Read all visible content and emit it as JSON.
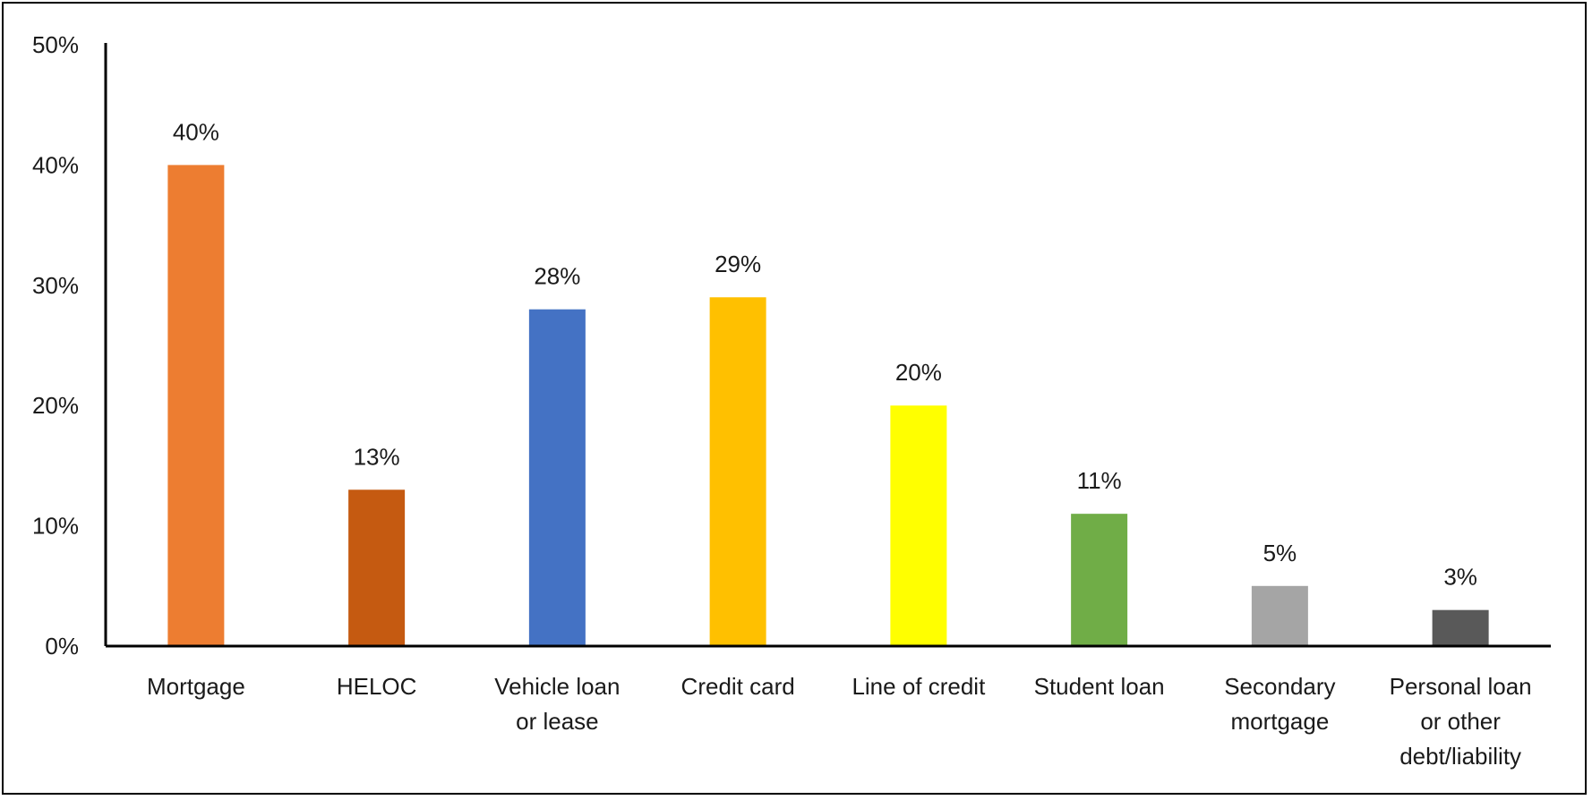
{
  "chart_data": {
    "type": "bar",
    "categories": [
      [
        "Mortgage"
      ],
      [
        "HELOC"
      ],
      [
        "Vehicle loan",
        "or lease"
      ],
      [
        "Credit card"
      ],
      [
        "Line of credit"
      ],
      [
        "Student loan"
      ],
      [
        "Secondary",
        "mortgage"
      ],
      [
        "Personal loan",
        "or other",
        "debt/liability"
      ]
    ],
    "values": [
      40,
      13,
      28,
      29,
      20,
      11,
      5,
      3
    ],
    "value_labels": [
      "40%",
      "13%",
      "28%",
      "29%",
      "20%",
      "11%",
      "5%",
      "3%"
    ],
    "colors": [
      "#ED7D31",
      "#C55A11",
      "#4472C4",
      "#FFC000",
      "#FFFF00",
      "#70AD47",
      "#A5A5A5",
      "#595959"
    ],
    "y_ticks": [
      0,
      10,
      20,
      30,
      40,
      50
    ],
    "y_tick_labels": [
      "0%",
      "10%",
      "20%",
      "30%",
      "40%",
      "50%"
    ],
    "ylim": [
      0,
      50
    ],
    "grid": false,
    "legend": "none"
  }
}
